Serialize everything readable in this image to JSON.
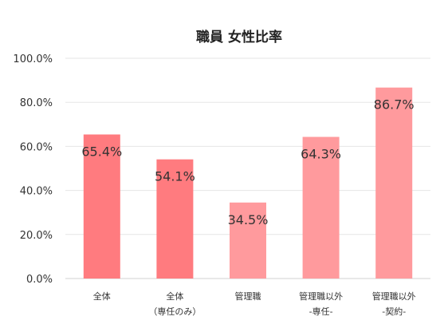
{
  "chart_data": {
    "type": "bar",
    "title": "職員 女性比率",
    "categories": [
      [
        "全体"
      ],
      [
        "全体",
        "（専任のみ）"
      ],
      [
        "管理職"
      ],
      [
        "管理職以外",
        "-専任-"
      ],
      [
        "管理職以外",
        "-契約-"
      ]
    ],
    "values": [
      65.4,
      54.1,
      34.5,
      64.3,
      86.7
    ],
    "data_labels": [
      "65.4%",
      "54.1%",
      "34.5%",
      "64.3%",
      "86.7%"
    ],
    "ylim": [
      0,
      100
    ],
    "yticks": [
      0,
      20,
      40,
      60,
      80,
      100
    ],
    "ytick_labels": [
      "0.0%",
      "20.0%",
      "40.0%",
      "60.0%",
      "80.0%",
      "100.0%"
    ],
    "bar_colors": [
      "#ff7b7f",
      "#ff7b7f",
      "#ff9a9d",
      "#ff9a9d",
      "#ff9a9d"
    ],
    "grid": true,
    "legend": false,
    "xlabel": "",
    "ylabel": ""
  }
}
